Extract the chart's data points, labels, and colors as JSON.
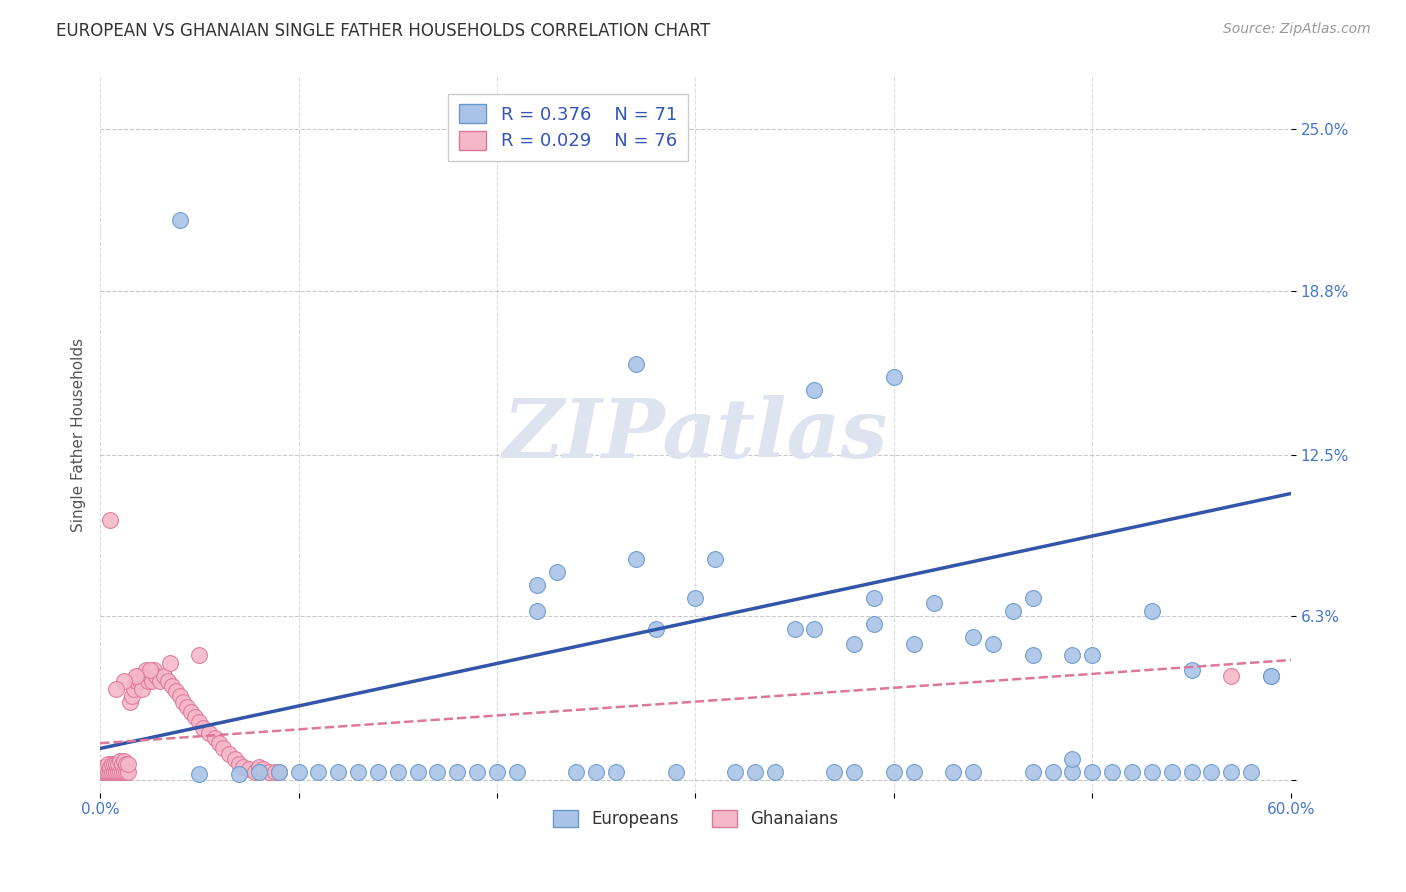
{
  "title": "EUROPEAN VS GHANAIAN SINGLE FATHER HOUSEHOLDS CORRELATION CHART",
  "source": "Source: ZipAtlas.com",
  "ylabel": "Single Father Households",
  "xlim": [
    0.0,
    0.6
  ],
  "ylim": [
    -0.005,
    0.27
  ],
  "xtick_positions": [
    0.0,
    0.1,
    0.2,
    0.3,
    0.4,
    0.5,
    0.6
  ],
  "xticklabels": [
    "0.0%",
    "",
    "",
    "",
    "",
    "",
    "60.0%"
  ],
  "ytick_positions": [
    0.0,
    0.063,
    0.125,
    0.188,
    0.25
  ],
  "ytick_labels": [
    "",
    "6.3%",
    "12.5%",
    "18.8%",
    "25.0%"
  ],
  "legend_r_european": "R = 0.376",
  "legend_n_european": "N = 71",
  "legend_r_ghanaian": "R = 0.029",
  "legend_n_ghanaian": "N = 76",
  "european_color": "#aac4e8",
  "european_edge": "#6699cc",
  "european_line_color": "#3355aa",
  "ghanaian_color": "#f5b8c8",
  "ghanaian_edge": "#dd7799",
  "ghanaian_line_color": "#dd7799",
  "background_color": "#ffffff",
  "grid_color": "#bbbbbb",
  "watermark_text": "ZIPatlas",
  "watermark_color": "#dde4ef",
  "title_color": "#333333",
  "axis_label_color": "#555555",
  "tick_label_color": "#4477cc",
  "legend_text_color": "#000000",
  "legend_num_color": "#3355bb",
  "source_color": "#999999",
  "eu_x": [
    0.04,
    0.05,
    0.07,
    0.08,
    0.09,
    0.1,
    0.11,
    0.12,
    0.13,
    0.14,
    0.15,
    0.16,
    0.17,
    0.18,
    0.19,
    0.2,
    0.21,
    0.22,
    0.22,
    0.23,
    0.24,
    0.25,
    0.26,
    0.27,
    0.28,
    0.29,
    0.3,
    0.31,
    0.32,
    0.33,
    0.34,
    0.35,
    0.36,
    0.37,
    0.38,
    0.38,
    0.39,
    0.4,
    0.41,
    0.41,
    0.42,
    0.43,
    0.44,
    0.44,
    0.45,
    0.46,
    0.47,
    0.47,
    0.48,
    0.49,
    0.49,
    0.5,
    0.5,
    0.51,
    0.52,
    0.53,
    0.54,
    0.55,
    0.55,
    0.56,
    0.57,
    0.58,
    0.59,
    0.4,
    0.27,
    0.36,
    0.39,
    0.47,
    0.59,
    0.53,
    0.49
  ],
  "eu_y": [
    0.215,
    0.002,
    0.002,
    0.003,
    0.003,
    0.003,
    0.003,
    0.003,
    0.003,
    0.003,
    0.003,
    0.003,
    0.003,
    0.003,
    0.003,
    0.003,
    0.003,
    0.065,
    0.075,
    0.08,
    0.003,
    0.003,
    0.003,
    0.085,
    0.058,
    0.003,
    0.07,
    0.085,
    0.003,
    0.003,
    0.003,
    0.058,
    0.058,
    0.003,
    0.003,
    0.052,
    0.07,
    0.003,
    0.003,
    0.052,
    0.068,
    0.003,
    0.003,
    0.055,
    0.052,
    0.065,
    0.003,
    0.048,
    0.003,
    0.003,
    0.048,
    0.003,
    0.048,
    0.003,
    0.003,
    0.003,
    0.003,
    0.003,
    0.042,
    0.003,
    0.003,
    0.003,
    0.04,
    0.155,
    0.16,
    0.15,
    0.06,
    0.07,
    0.04,
    0.065,
    0.008
  ],
  "gh_x": [
    0.001,
    0.002,
    0.002,
    0.003,
    0.003,
    0.004,
    0.004,
    0.005,
    0.005,
    0.006,
    0.006,
    0.007,
    0.007,
    0.008,
    0.008,
    0.009,
    0.009,
    0.01,
    0.01,
    0.011,
    0.011,
    0.012,
    0.012,
    0.013,
    0.013,
    0.014,
    0.014,
    0.015,
    0.016,
    0.017,
    0.018,
    0.019,
    0.02,
    0.021,
    0.022,
    0.023,
    0.024,
    0.025,
    0.026,
    0.027,
    0.028,
    0.03,
    0.032,
    0.034,
    0.036,
    0.038,
    0.04,
    0.042,
    0.044,
    0.046,
    0.048,
    0.05,
    0.052,
    0.055,
    0.058,
    0.06,
    0.062,
    0.065,
    0.068,
    0.07,
    0.072,
    0.075,
    0.078,
    0.08,
    0.082,
    0.085,
    0.088,
    0.09,
    0.05,
    0.035,
    0.025,
    0.018,
    0.012,
    0.008,
    0.005,
    0.57
  ],
  "gh_y": [
    0.003,
    0.003,
    0.005,
    0.003,
    0.005,
    0.003,
    0.006,
    0.003,
    0.005,
    0.003,
    0.006,
    0.003,
    0.006,
    0.003,
    0.006,
    0.003,
    0.006,
    0.003,
    0.007,
    0.003,
    0.006,
    0.003,
    0.007,
    0.003,
    0.006,
    0.003,
    0.006,
    0.03,
    0.032,
    0.035,
    0.038,
    0.04,
    0.038,
    0.035,
    0.04,
    0.042,
    0.038,
    0.04,
    0.038,
    0.042,
    0.04,
    0.038,
    0.04,
    0.038,
    0.036,
    0.034,
    0.032,
    0.03,
    0.028,
    0.026,
    0.024,
    0.022,
    0.02,
    0.018,
    0.016,
    0.014,
    0.012,
    0.01,
    0.008,
    0.006,
    0.005,
    0.004,
    0.003,
    0.005,
    0.004,
    0.003,
    0.003,
    0.003,
    0.048,
    0.045,
    0.042,
    0.04,
    0.038,
    0.035,
    0.1,
    0.04
  ]
}
